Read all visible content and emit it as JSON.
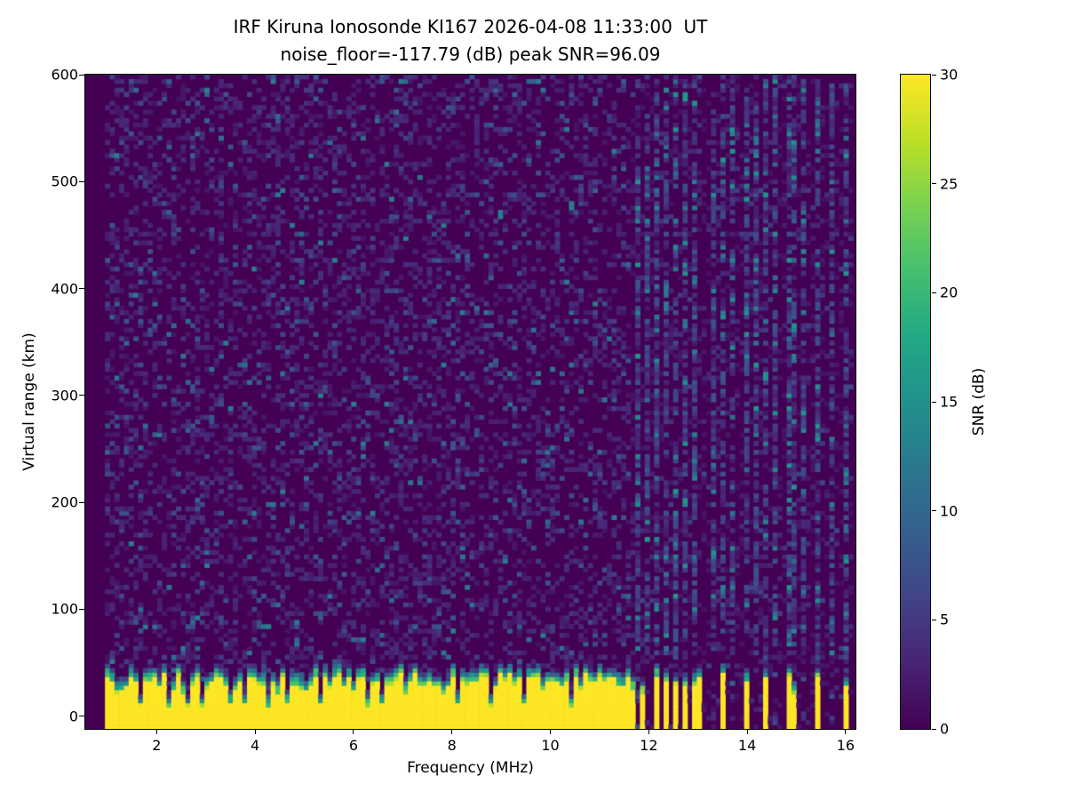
{
  "chart_data": {
    "type": "heatmap",
    "title": "IRF Kiruna Ionosonde KI167 2026-04-08 11:33:00  UT",
    "subtitle": "noise_floor=-117.79 (dB) peak SNR=96.09",
    "xlabel": "Frequency (MHz)",
    "ylabel": "Virtual range (km)",
    "xlim": [
      0.55,
      16.2
    ],
    "ylim": [
      -12,
      600
    ],
    "xticks": [
      2,
      4,
      6,
      8,
      10,
      12,
      14,
      16
    ],
    "yticks": [
      0,
      100,
      200,
      300,
      400,
      500,
      600
    ],
    "grid": false,
    "colorbar": {
      "label": "SNR (dB)",
      "min": 0,
      "max": 30,
      "ticks": [
        0,
        5,
        10,
        15,
        20,
        25,
        30
      ],
      "colormap": "viridis",
      "stops": [
        "#440154",
        "#482475",
        "#414487",
        "#355f8d",
        "#2a788e",
        "#21918c",
        "#22a884",
        "#44bf70",
        "#7ad151",
        "#bddf26",
        "#fde725"
      ]
    },
    "heatmap": {
      "freq_start_mhz": 0.95,
      "freq_end_mhz": 16.15,
      "freq_bins": 158,
      "range_bins": 150,
      "noise_floor_db": -117.79,
      "peak_snr_db": 96.09,
      "background_snr_db": 0,
      "ground_clutter": {
        "top_km_mean": 30,
        "top_km_jitter": 9,
        "transition_km": 14,
        "snr_db": 30
      },
      "band_notches_mhz": [
        1.65,
        2.25,
        2.6,
        2.95,
        3.5,
        3.75,
        4.3,
        4.65,
        5.3,
        6.3,
        6.55,
        7.3,
        8.1,
        8.8,
        9.45,
        10.4,
        11.15
      ],
      "band_comb": {
        "start_mhz": 11.62,
        "end_mhz": 13.05,
        "period_mhz": 0.175,
        "duty": 0.5
      },
      "band_teeth_mhz": [
        13.5,
        13.95,
        14.35,
        14.9,
        15.45,
        16.05
      ],
      "rfi_columns_mhz": [
        11.75,
        11.95,
        12.15,
        12.35,
        12.55,
        12.75,
        12.95,
        13.3,
        13.5,
        13.7,
        13.95,
        14.15,
        14.35,
        14.6,
        14.9,
        15.1,
        15.45,
        15.7,
        16.05
      ],
      "seed": 167
    }
  },
  "figure": {
    "background": "#ffffff",
    "text_color": "#000000"
  }
}
